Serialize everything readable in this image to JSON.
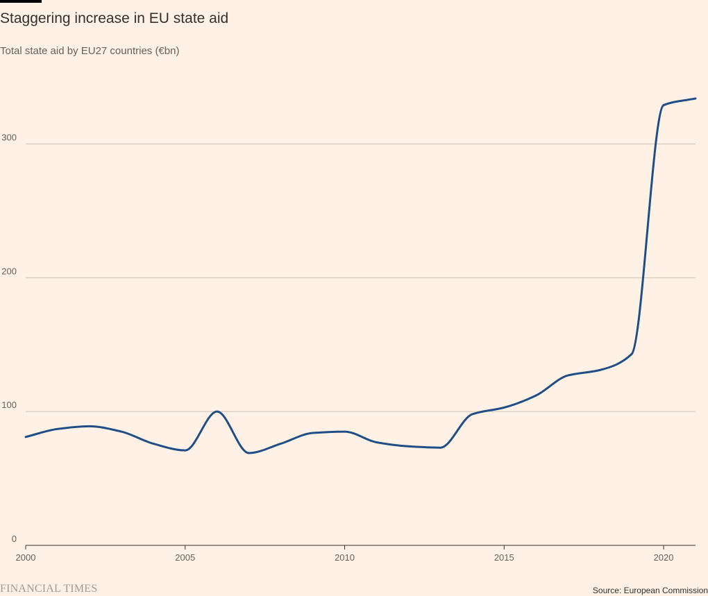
{
  "header": {
    "title": "Staggering increase in EU state aid",
    "subtitle": "Total state aid by EU27 countries (€bn)"
  },
  "footer": {
    "logo_text": "FINANCIAL TIMES",
    "source": "Source: European Commission"
  },
  "colors": {
    "background": "#fff1e5",
    "line": "#1f4e87",
    "gridline": "#ccc1b7",
    "axis": "#33302e",
    "text": "#33302e",
    "muted_text": "#66605c",
    "logo": "#a6998c"
  },
  "chart_data": {
    "type": "line",
    "title": "Staggering increase in EU state aid",
    "subtitle": "Total state aid by EU27 countries (€bn)",
    "xlabel": "",
    "ylabel": "",
    "xlim": [
      2000,
      2021
    ],
    "ylim": [
      0,
      335
    ],
    "xticks": [
      2000,
      2005,
      2010,
      2015,
      2020
    ],
    "yticks": [
      0,
      100,
      200,
      300
    ],
    "grid": true,
    "legend": "none",
    "series": [
      {
        "x": [
          2000,
          2001,
          2002,
          2003,
          2004,
          2005,
          2006,
          2007,
          2008,
          2009,
          2010,
          2011,
          2012,
          2013,
          2014,
          2015,
          2016,
          2017,
          2018,
          2019,
          2020,
          2021
        ],
        "values": [
          81,
          87,
          89,
          85,
          76,
          71,
          100,
          69,
          76,
          84,
          85,
          77,
          74,
          73,
          98,
          103,
          112,
          127,
          131,
          143,
          329,
          334
        ]
      }
    ]
  }
}
